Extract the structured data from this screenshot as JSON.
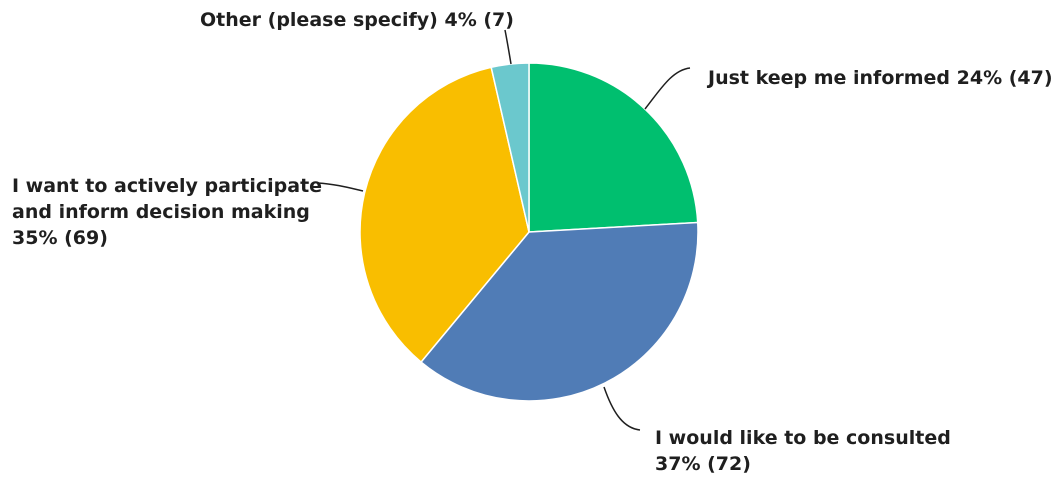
{
  "chart_data": {
    "type": "pie",
    "title": "",
    "slices": [
      {
        "label_lines": [
          "Just keep me informed 24% (47)"
        ],
        "percent": 24,
        "count": 47,
        "color": "#00bf6f"
      },
      {
        "label_lines": [
          "I would like to be consulted",
          "37% (72)"
        ],
        "percent": 37,
        "count": 72,
        "color": "#507cb6"
      },
      {
        "label_lines": [
          "I want to actively participate",
          "and inform decision making",
          "35% (69)"
        ],
        "percent": 35,
        "count": 69,
        "color": "#f9be00"
      },
      {
        "label_lines": [
          "Other (please specify) 4% (7)"
        ],
        "percent": 4,
        "count": 7,
        "color": "#6bc8cd"
      }
    ],
    "start_angle_deg": 0,
    "direction": "clockwise",
    "legend": "none"
  }
}
